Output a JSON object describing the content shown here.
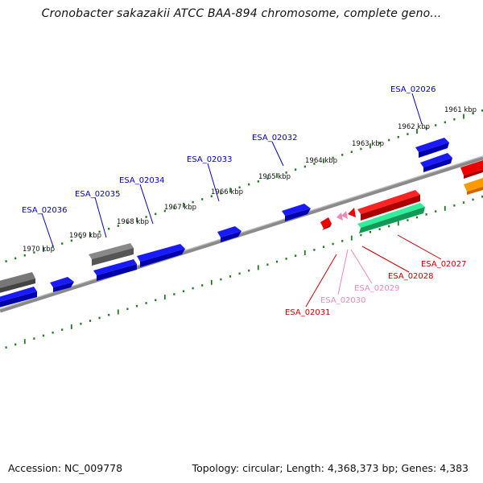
{
  "title": "Cronobacter sakazakii ATCC BAA-894 chromosome, complete geno...",
  "footer": {
    "accession": "Accession: NC_009778",
    "topology": "Topology: circular; Length: 4,368,373 bp; Genes: 4,383"
  },
  "colors": {
    "tick_green": "#1e7b1e",
    "backbone": "#888888",
    "blue_gene": "#0000ee",
    "grey_gene": "#666666",
    "red_gene": "#ee0000",
    "pink_gene": "#ee88bb",
    "teal_gene": "#22dd88",
    "orange_gene": "#ff8800",
    "label_blue": "#0000cc",
    "label_red": "#cc0000",
    "label_pink": "#ee88bb"
  },
  "kbp_ticks": [
    "1961 kbp",
    "1962 kbp",
    "1963 kbp",
    "1964 kbp",
    "1965 kbp",
    "1966 kbp",
    "1967 kbp",
    "1968 kbp",
    "1969 kbp",
    "1970 kbp"
  ],
  "gene_labels_top": [
    "ESA_02026",
    "ESA_02032",
    "ESA_02033",
    "ESA_02034",
    "ESA_02035",
    "ESA_02036"
  ],
  "gene_labels_bottom": [
    "ESA_02027",
    "ESA_02028",
    "ESA_02029",
    "ESA_02030",
    "ESA_02031"
  ]
}
